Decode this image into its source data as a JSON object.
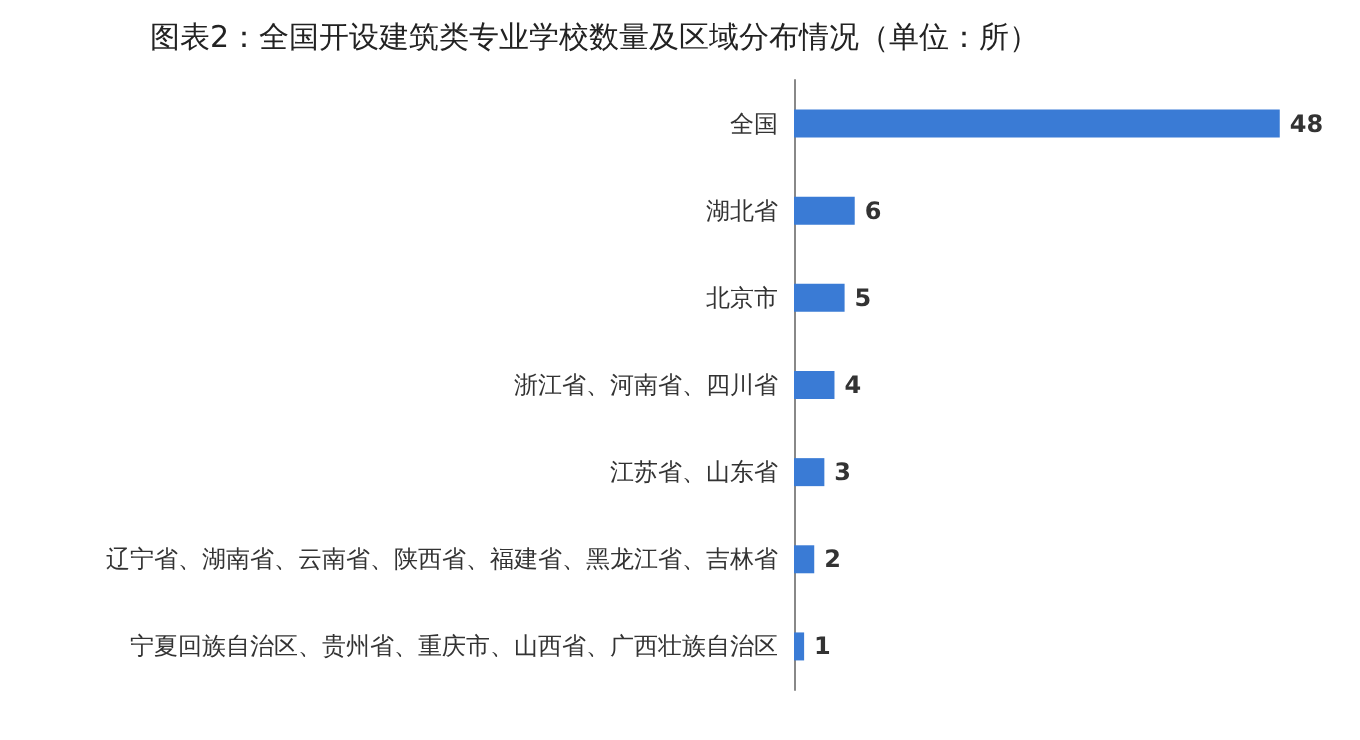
{
  "chart_data": {
    "type": "bar",
    "orientation": "horizontal",
    "title": "图表2：全国开设建筑类专业学校数量及区域分布情况（单位：所）",
    "categories": [
      "全国",
      "湖北省",
      "北京市",
      "浙江省、河南省、四川省",
      "江苏省、山东省",
      "辽宁省、湖南省、云南省、陕西省、福建省、黑龙江省、吉林省",
      "宁夏回族自治区、贵州省、重庆市、山西省、广西壮族自治区"
    ],
    "values": [
      48,
      6,
      5,
      4,
      3,
      2,
      1
    ],
    "color": "#3a7bd5",
    "data_labels": true,
    "tick_labels": "y"
  }
}
